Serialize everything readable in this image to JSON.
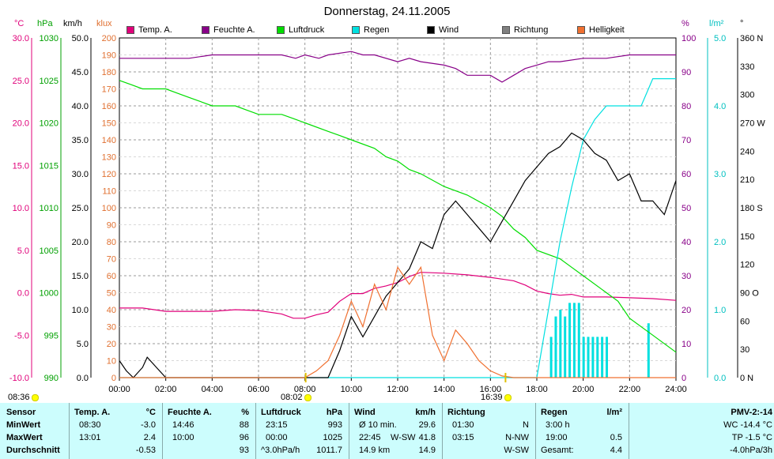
{
  "title": "Donnerstag, 24.11.2005",
  "units": {
    "temp": "°C",
    "pressure": "hPa",
    "wind": "km/h",
    "light": "klux",
    "humidity": "%",
    "rain": "l/m²",
    "direction": "°"
  },
  "legend": [
    {
      "label": "Temp. A.",
      "color": "#e0007a"
    },
    {
      "label": "Feuchte A.",
      "color": "#880088"
    },
    {
      "label": "Luftdruck",
      "color": "#00dd00"
    },
    {
      "label": "Regen",
      "color": "#00e0e0"
    },
    {
      "label": "Wind",
      "color": "#000000"
    },
    {
      "label": "Richtung",
      "color": "#808080"
    },
    {
      "label": "Helligkeit",
      "color": "#f07030"
    }
  ],
  "axes": {
    "temp_ticks": [
      "30.0",
      "25.0",
      "20.0",
      "15.0",
      "10.0",
      "5.0",
      "0.0",
      "-5.0",
      "-10.0"
    ],
    "pressure_ticks": [
      "1030",
      "1025",
      "1020",
      "1015",
      "1010",
      "1005",
      "1000",
      "995",
      "990"
    ],
    "wind_ticks": [
      "50.0",
      "45.0",
      "40.0",
      "35.0",
      "30.0",
      "25.0",
      "20.0",
      "15.0",
      "10.0",
      "5.0",
      "0.0"
    ],
    "light_ticks": [
      "200",
      "190",
      "180",
      "170",
      "160",
      "150",
      "140",
      "130",
      "120",
      "110",
      "100",
      "90",
      "80",
      "70",
      "60",
      "50",
      "40",
      "30",
      "20",
      "10",
      "0"
    ],
    "humidity_ticks": [
      "100",
      "90",
      "80",
      "70",
      "60",
      "50",
      "40",
      "30",
      "20",
      "10",
      "0"
    ],
    "rain_ticks": [
      "5.0",
      "4.0",
      "3.0",
      "2.0",
      "1.0",
      "0.0"
    ],
    "direction_ticks": [
      "360 N",
      "330",
      "300",
      "270 W",
      "240",
      "210",
      "180 S",
      "150",
      "120",
      "90 O",
      "60",
      "30",
      "0 N"
    ],
    "time_ticks": [
      "00:00",
      "02:00",
      "04:00",
      "06:00",
      "08:00",
      "10:00",
      "12:00",
      "14:00",
      "16:00",
      "18:00",
      "20:00",
      "22:00",
      "24:00"
    ]
  },
  "markers": {
    "sunrise": "08:36",
    "sunset": "16:39",
    "left": "08:02"
  },
  "chart_data": {
    "type": "line",
    "x_unit": "hours",
    "xlim": [
      0,
      24
    ],
    "series": [
      {
        "name": "Temp. A.",
        "axis": "°C",
        "ylim": [
          -10,
          30
        ],
        "x": [
          0,
          1,
          2,
          3,
          4,
          5,
          6,
          7,
          7.5,
          8,
          8.5,
          9,
          9.5,
          10,
          10.5,
          11,
          11.5,
          12,
          12.5,
          13,
          14,
          15,
          16,
          16.5,
          17,
          17.5,
          18,
          18.5,
          19,
          19.5,
          20,
          21,
          22,
          23,
          24
        ],
        "y": [
          -1.8,
          -1.8,
          -2.2,
          -2.2,
          -2.2,
          -2.0,
          -2.1,
          -2.5,
          -3.0,
          -3.0,
          -2.6,
          -2.3,
          -1.0,
          -0.1,
          -0.1,
          0.5,
          0.8,
          1.2,
          1.9,
          2.4,
          2.3,
          2.1,
          1.8,
          1.6,
          1.4,
          0.9,
          0.2,
          -0.1,
          -0.3,
          -0.2,
          -0.5,
          -0.5,
          -0.6,
          -0.7,
          -0.9
        ]
      },
      {
        "name": "Feuchte A.",
        "axis": "%",
        "ylim": [
          0,
          100
        ],
        "x": [
          0,
          2,
          3,
          4,
          5,
          6,
          7,
          7.6,
          8,
          8.6,
          9,
          10,
          10.5,
          11,
          12,
          12.5,
          13,
          14,
          14.5,
          15,
          16,
          16.5,
          17,
          17.5,
          18,
          18.5,
          19,
          20,
          21,
          22,
          23,
          24
        ],
        "y": [
          94,
          94,
          94,
          95,
          95,
          95,
          95,
          94,
          95,
          94,
          95,
          96,
          95,
          95,
          93,
          94,
          93,
          92,
          91,
          89,
          89,
          87,
          89,
          91,
          92,
          93,
          93,
          94,
          94,
          95,
          95,
          95
        ]
      },
      {
        "name": "Luftdruck",
        "axis": "hPa",
        "ylim": [
          990,
          1030
        ],
        "x": [
          0,
          0.5,
          1,
          2,
          2.5,
          3,
          3.5,
          4,
          5,
          5.5,
          6,
          7,
          7.5,
          8,
          9,
          9.5,
          10,
          11,
          11.5,
          12,
          12.5,
          13,
          14,
          15,
          16,
          16.5,
          17,
          17.5,
          18,
          19,
          19.5,
          20,
          21,
          21.5,
          22,
          23,
          24
        ],
        "y": [
          1025,
          1024.5,
          1024,
          1024,
          1023.5,
          1023,
          1022.5,
          1022,
          1022,
          1021.5,
          1021,
          1021,
          1020.5,
          1020,
          1019,
          1018.5,
          1018,
          1017,
          1016,
          1015.5,
          1014.5,
          1014,
          1012.5,
          1011.5,
          1010,
          1009,
          1007.5,
          1006.5,
          1005,
          1004,
          1003,
          1002,
          1000,
          999,
          997,
          995,
          993
        ]
      },
      {
        "name": "Regen",
        "axis": "l/m²",
        "ylim": [
          0,
          5
        ],
        "x": [
          0,
          18,
          18.5,
          19,
          19.5,
          20,
          20.5,
          21,
          22,
          22.5,
          23,
          24
        ],
        "y": [
          0,
          0,
          1.0,
          2.0,
          2.8,
          3.5,
          3.8,
          4.0,
          4.0,
          4.0,
          4.4,
          4.4
        ]
      },
      {
        "name": "Wind",
        "axis": "km/h",
        "ylim": [
          0,
          50
        ],
        "x": [
          0,
          0.3,
          0.6,
          1,
          1.2,
          1.6,
          2,
          2.3,
          3,
          4,
          5,
          6,
          7,
          8,
          9,
          9.5,
          10,
          10.5,
          11,
          11.5,
          12,
          12.5,
          13,
          13.5,
          14,
          14.5,
          15,
          15.5,
          16,
          16.5,
          17,
          17.5,
          18,
          18.5,
          19,
          19.5,
          20,
          20.5,
          21,
          21.5,
          22,
          22.5,
          23,
          23.5,
          24
        ],
        "y": [
          2.5,
          1,
          0,
          1.5,
          3,
          1.5,
          0,
          0,
          0,
          0,
          0,
          0,
          0,
          0,
          0,
          4,
          9,
          6,
          9,
          12,
          14,
          16,
          20,
          19,
          24,
          26,
          24,
          22,
          20,
          23,
          26,
          29,
          31,
          33,
          34,
          36,
          35,
          33,
          32,
          29,
          30,
          26,
          26,
          24,
          29
        ]
      },
      {
        "name": "Helligkeit",
        "axis": "klux",
        "ylim": [
          0,
          200
        ],
        "x": [
          0,
          8,
          8.5,
          9,
          9.5,
          10,
          10.5,
          11,
          11.5,
          12,
          12.5,
          13,
          13.5,
          14,
          14.5,
          15,
          15.5,
          16,
          16.5,
          17,
          24
        ],
        "y": [
          0,
          0,
          4,
          10,
          25,
          45,
          30,
          55,
          40,
          65,
          55,
          65,
          25,
          10,
          28,
          20,
          10,
          4,
          1,
          0,
          0
        ]
      }
    ],
    "rain_bars": {
      "x": [
        18.6,
        18.8,
        19.0,
        19.2,
        19.4,
        19.6,
        19.8,
        20.0,
        20.2,
        20.4,
        20.6,
        20.8,
        21.0,
        22.8
      ],
      "y": [
        0.6,
        0.9,
        1.0,
        0.9,
        1.1,
        1.1,
        1.1,
        0.6,
        0.6,
        0.6,
        0.6,
        0.6,
        0.6,
        0.8
      ]
    }
  },
  "table": {
    "sensor": {
      "header": "Sensor",
      "rows": [
        "MinWert",
        "MaxWert",
        "Durchschnitt"
      ]
    },
    "temp": {
      "header": "Temp. A.",
      "unit": "°C",
      "rows": [
        [
          "08:30",
          "-3.0"
        ],
        [
          "13:01",
          "2.4"
        ],
        [
          "",
          "-0.53"
        ]
      ]
    },
    "humidity": {
      "header": "Feuchte A.",
      "unit": "%",
      "rows": [
        [
          "14:46",
          "88"
        ],
        [
          "10:00",
          "96"
        ],
        [
          "",
          "93"
        ]
      ]
    },
    "pressure": {
      "header": "Luftdruck",
      "unit": "hPa",
      "rows": [
        [
          "23:15",
          "993"
        ],
        [
          "00:00",
          "1025"
        ],
        [
          "^3.0hPa/h",
          "1011.7"
        ]
      ]
    },
    "wind": {
      "header": "Wind",
      "unit": "km/h",
      "rows": [
        [
          "Ø 10 min.",
          "",
          "29.6"
        ],
        [
          "22:45",
          "W-SW",
          "41.8"
        ],
        [
          "14.9 km",
          "",
          "14.9"
        ]
      ]
    },
    "direction": {
      "header": "Richtung",
      "rows": [
        [
          "01:30",
          "N"
        ],
        [
          "03:15",
          "N-NW"
        ],
        [
          "",
          "W-SW"
        ]
      ]
    },
    "rain": {
      "header": "Regen",
      "unit": "l/m²",
      "rows": [
        [
          "3:00 h",
          ""
        ],
        [
          "19:00",
          "0.5"
        ],
        [
          "Gesamt:",
          "4.4"
        ]
      ]
    },
    "pmv": {
      "header": "PMV-2:-14",
      "rows": [
        "WC -14.4 °C",
        "TP -1.5 °C",
        "-4.0hPa/3h"
      ]
    }
  }
}
